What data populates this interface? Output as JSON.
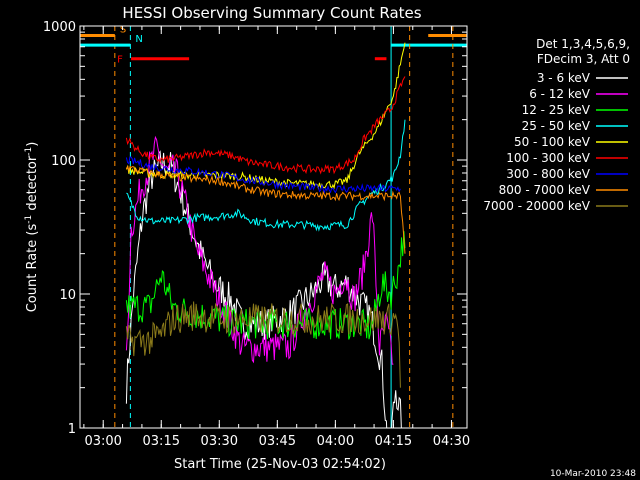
{
  "chart_data": {
    "type": "line",
    "title": "HESSI Observing Summary Count Rates",
    "xlabel": "Start Time (25-Nov-03 02:54:02)",
    "ylabel_main": "Count Rate (s",
    "ylabel_sup1": "-1",
    "ylabel_mid": " detector",
    "ylabel_sup2": "-1",
    "ylabel_end": ")",
    "y_scale": "log",
    "ylim": [
      1,
      1000
    ],
    "xlim": [
      2.9,
      4.567
    ],
    "x_ticks": [
      {
        "t": 3.0,
        "label": "03:00"
      },
      {
        "t": 3.25,
        "label": "03:15"
      },
      {
        "t": 3.5,
        "label": "03:30"
      },
      {
        "t": 3.75,
        "label": "03:45"
      },
      {
        "t": 4.0,
        "label": "04:00"
      },
      {
        "t": 4.25,
        "label": "04:15"
      },
      {
        "t": 4.5,
        "label": "04:30"
      }
    ],
    "y_ticks": [
      {
        "v": 1,
        "label": "1"
      },
      {
        "v": 10,
        "label": "10"
      },
      {
        "v": 100,
        "label": "100"
      },
      {
        "v": 1000,
        "label": "1000"
      }
    ],
    "legend_header": [
      "Det 1,3,4,5,6,9,",
      "FDecim 3, Att 0"
    ],
    "legend_position": "right",
    "date_stamp": "10-Mar-2010 23:48",
    "series": [
      {
        "name": "3 - 6 keV",
        "color": "#ffffff",
        "points": [
          [
            3.1,
            2
          ],
          [
            3.13,
            10
          ],
          [
            3.17,
            40
          ],
          [
            3.21,
            75
          ],
          [
            3.25,
            95
          ],
          [
            3.29,
            90
          ],
          [
            3.33,
            60
          ],
          [
            3.37,
            35
          ],
          [
            3.42,
            20
          ],
          [
            3.48,
            12
          ],
          [
            3.55,
            9
          ],
          [
            3.6,
            6
          ],
          [
            3.7,
            6
          ],
          [
            3.8,
            7
          ],
          [
            3.9,
            10
          ],
          [
            3.95,
            13
          ],
          [
            4.0,
            11
          ],
          [
            4.05,
            12
          ],
          [
            4.1,
            9
          ],
          [
            4.15,
            7
          ],
          [
            4.2,
            3
          ],
          [
            4.23,
            0.6
          ],
          [
            4.26,
            2
          ],
          [
            4.29,
            1
          ]
        ]
      },
      {
        "name": "6 - 12 keV",
        "color": "#ff00ff",
        "points": [
          [
            3.1,
            3
          ],
          [
            3.12,
            30
          ],
          [
            3.16,
            60
          ],
          [
            3.2,
            90
          ],
          [
            3.23,
            120
          ],
          [
            3.27,
            80
          ],
          [
            3.31,
            85
          ],
          [
            3.35,
            50
          ],
          [
            3.4,
            22
          ],
          [
            3.45,
            14
          ],
          [
            3.5,
            9
          ],
          [
            3.55,
            6
          ],
          [
            3.6,
            4
          ],
          [
            3.7,
            4
          ],
          [
            3.8,
            4
          ],
          [
            3.88,
            8
          ],
          [
            3.95,
            14
          ],
          [
            4.0,
            10
          ],
          [
            4.04,
            14
          ],
          [
            4.08,
            9
          ],
          [
            4.12,
            15
          ],
          [
            4.16,
            40
          ],
          [
            4.19,
            4
          ],
          [
            4.22,
            6
          ],
          [
            4.25,
            3
          ]
        ]
      },
      {
        "name": "12 - 25 keV",
        "color": "#00ff00",
        "points": [
          [
            3.1,
            8
          ],
          [
            3.2,
            8
          ],
          [
            3.25,
            14
          ],
          [
            3.3,
            8
          ],
          [
            3.4,
            7
          ],
          [
            3.5,
            6.5
          ],
          [
            3.6,
            6
          ],
          [
            3.8,
            6
          ],
          [
            4.0,
            6
          ],
          [
            4.1,
            6
          ],
          [
            4.15,
            5.5
          ],
          [
            4.17,
            7
          ],
          [
            4.2,
            12
          ],
          [
            4.24,
            10
          ],
          [
            4.27,
            15
          ],
          [
            4.29,
            25
          ],
          [
            4.3,
            22
          ]
        ]
      },
      {
        "name": "25 - 50 keV",
        "color": "#00ffff",
        "points": [
          [
            3.1,
            55
          ],
          [
            3.15,
            38
          ],
          [
            3.2,
            35
          ],
          [
            3.3,
            35
          ],
          [
            3.4,
            37
          ],
          [
            3.5,
            38
          ],
          [
            3.58,
            40
          ],
          [
            3.65,
            35
          ],
          [
            3.75,
            33
          ],
          [
            3.85,
            33
          ],
          [
            3.95,
            32
          ],
          [
            4.05,
            33
          ],
          [
            4.1,
            45
          ],
          [
            4.15,
            55
          ],
          [
            4.2,
            62
          ],
          [
            4.25,
            75
          ],
          [
            4.28,
            110
          ],
          [
            4.3,
            200
          ]
        ]
      },
      {
        "name": "50 - 100 keV",
        "color": "#ffff00",
        "points": [
          [
            3.1,
            85
          ],
          [
            3.18,
            80
          ],
          [
            3.25,
            78
          ],
          [
            3.35,
            77
          ],
          [
            3.5,
            77
          ],
          [
            3.6,
            75
          ],
          [
            3.7,
            70
          ],
          [
            3.8,
            67
          ],
          [
            3.9,
            66
          ],
          [
            4.0,
            66
          ],
          [
            4.05,
            70
          ],
          [
            4.1,
            110
          ],
          [
            4.18,
            170
          ],
          [
            4.25,
            300
          ],
          [
            4.3,
            750
          ]
        ]
      },
      {
        "name": "100 - 300 keV",
        "color": "#ff0000",
        "points": [
          [
            3.1,
            145
          ],
          [
            3.15,
            118
          ],
          [
            3.2,
            105
          ],
          [
            3.25,
            100
          ],
          [
            3.3,
            102
          ],
          [
            3.38,
            108
          ],
          [
            3.45,
            115
          ],
          [
            3.55,
            108
          ],
          [
            3.62,
            97
          ],
          [
            3.7,
            92
          ],
          [
            3.8,
            88
          ],
          [
            3.9,
            85
          ],
          [
            4.0,
            86
          ],
          [
            4.08,
            100
          ],
          [
            4.12,
            140
          ],
          [
            4.18,
            190
          ],
          [
            4.24,
            240
          ],
          [
            4.28,
            350
          ],
          [
            4.3,
            420
          ]
        ]
      },
      {
        "name": "300 - 800 keV",
        "color": "#0000ff",
        "points": [
          [
            3.1,
            100
          ],
          [
            3.15,
            96
          ],
          [
            3.2,
            90
          ],
          [
            3.3,
            85
          ],
          [
            3.4,
            82
          ],
          [
            3.5,
            78
          ],
          [
            3.6,
            72
          ],
          [
            3.7,
            68
          ],
          [
            3.8,
            64
          ],
          [
            3.9,
            62
          ],
          [
            4.0,
            61
          ],
          [
            4.1,
            61
          ],
          [
            4.2,
            61
          ],
          [
            4.28,
            61
          ]
        ]
      },
      {
        "name": "800 - 7000 keV",
        "color": "#ff8c00",
        "points": [
          [
            3.1,
            88
          ],
          [
            3.2,
            80
          ],
          [
            3.3,
            75
          ],
          [
            3.4,
            72
          ],
          [
            3.5,
            70
          ],
          [
            3.6,
            62
          ],
          [
            3.7,
            57
          ],
          [
            3.8,
            55
          ],
          [
            3.9,
            54
          ],
          [
            4.0,
            54
          ],
          [
            4.1,
            54
          ],
          [
            4.2,
            54
          ],
          [
            4.28,
            54
          ],
          [
            4.3,
            20
          ]
        ]
      },
      {
        "name": "7000 - 20000 keV",
        "color": "#8b7a1a",
        "points": [
          [
            3.1,
            4.5
          ],
          [
            3.2,
            4.5
          ],
          [
            3.25,
            5
          ],
          [
            3.3,
            6.5
          ],
          [
            3.4,
            7
          ],
          [
            3.5,
            6.5
          ],
          [
            3.6,
            6.5
          ],
          [
            3.7,
            6.5
          ],
          [
            3.8,
            6.5
          ],
          [
            3.9,
            6.5
          ],
          [
            4.0,
            6.5
          ],
          [
            4.1,
            6.5
          ],
          [
            4.2,
            6.5
          ],
          [
            4.27,
            6.5
          ],
          [
            4.28,
            2
          ]
        ]
      }
    ],
    "flag_lines": [
      {
        "label": "S",
        "color": "#ff8c00",
        "t": 3.05,
        "level": 850,
        "from": 2.9,
        "to": 3.05
      },
      {
        "label": "N",
        "color": "#00ffff",
        "t": 3.117,
        "level": 720,
        "from": 2.9,
        "to": 3.117
      }
    ],
    "flare_label": "F",
    "flare_color": "#ff0000",
    "flare_bars": [
      {
        "from": 3.12,
        "to": 3.37,
        "level": 570
      },
      {
        "from": 4.17,
        "to": 4.22,
        "level": 570
      }
    ],
    "right_flags": [
      {
        "color": "#00ffff",
        "t": 4.24,
        "level": 720,
        "from": 4.24,
        "to": 4.567
      },
      {
        "color": "#ff8c00",
        "t": 4.506,
        "level": 850,
        "from": 4.4,
        "to": 4.567
      }
    ],
    "vertical_lines": [
      {
        "t": 4.32,
        "color": "#ff8c00",
        "dashed": true
      }
    ]
  }
}
